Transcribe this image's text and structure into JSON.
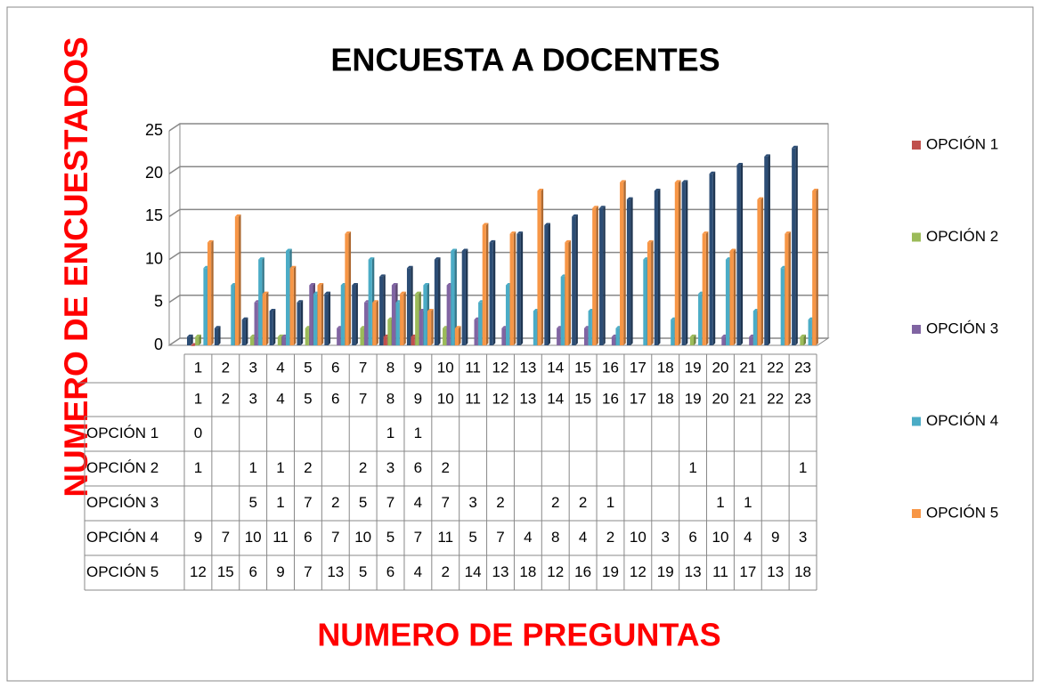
{
  "chart_data": {
    "type": "bar",
    "title": "ENCUESTA A DOCENTES",
    "xlabel": "NUMERO DE PREGUNTAS",
    "ylabel": "NUMERO DE ENCUESTADOS",
    "categories": [
      1,
      2,
      3,
      4,
      5,
      6,
      7,
      8,
      9,
      10,
      11,
      12,
      13,
      14,
      15,
      16,
      17,
      18,
      19,
      20,
      21,
      22,
      23
    ],
    "series": [
      {
        "color": "#2c4d75",
        "values": [
          1,
          2,
          3,
          4,
          5,
          6,
          7,
          8,
          9,
          10,
          11,
          12,
          13,
          14,
          15,
          16,
          17,
          18,
          19,
          20,
          21,
          22,
          23
        ]
      },
      {
        "name": "OPCIÓN 1",
        "color": "#c0504d",
        "values": [
          0,
          null,
          null,
          null,
          null,
          null,
          null,
          1,
          1,
          null,
          null,
          null,
          null,
          null,
          null,
          null,
          null,
          null,
          null,
          null,
          null,
          null,
          null
        ]
      },
      {
        "name": "OPCIÓN 2",
        "color": "#9bbb59",
        "values": [
          1,
          null,
          1,
          1,
          2,
          null,
          2,
          3,
          6,
          2,
          null,
          null,
          null,
          null,
          null,
          null,
          null,
          null,
          1,
          null,
          null,
          null,
          1
        ]
      },
      {
        "name": "OPCIÓN 3",
        "color": "#8064a2",
        "values": [
          null,
          null,
          5,
          1,
          7,
          2,
          5,
          7,
          4,
          7,
          3,
          2,
          null,
          2,
          2,
          1,
          null,
          null,
          null,
          1,
          1,
          null,
          null
        ]
      },
      {
        "name": "OPCIÓN 4",
        "color": "#4bacc6",
        "values": [
          9,
          7,
          10,
          11,
          6,
          7,
          10,
          5,
          7,
          11,
          5,
          7,
          4,
          8,
          4,
          2,
          10,
          3,
          6,
          10,
          4,
          9,
          3
        ]
      },
      {
        "name": "OPCIÓN 5",
        "color": "#f79646",
        "values": [
          12,
          15,
          6,
          9,
          7,
          13,
          5,
          6,
          4,
          2,
          14,
          13,
          18,
          12,
          16,
          19,
          12,
          19,
          13,
          11,
          17,
          13,
          18
        ]
      }
    ],
    "ylim": [
      0,
      25
    ],
    "yticks": [
      0,
      5,
      10,
      15,
      20,
      25
    ],
    "grid": true,
    "legend": "right"
  }
}
